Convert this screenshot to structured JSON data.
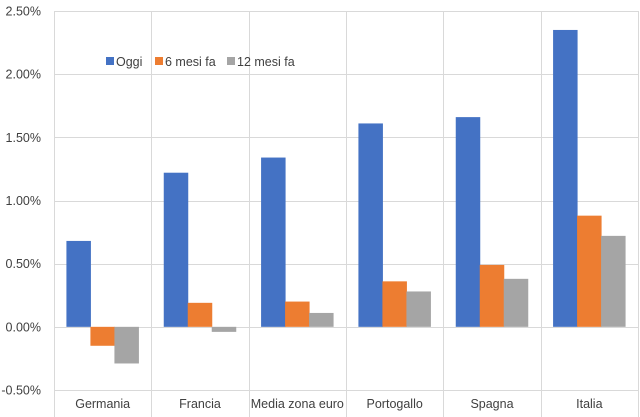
{
  "chart_data": {
    "type": "bar",
    "categories": [
      "Germania",
      "Francia",
      "Media zona euro",
      "Portogallo",
      "Spagna",
      "Italia"
    ],
    "series": [
      {
        "name": "Oggi",
        "color": "#4472C4",
        "values": [
          0.68,
          1.22,
          1.34,
          1.61,
          1.66,
          2.35
        ]
      },
      {
        "name": "6 mesi fa",
        "color": "#ED7D31",
        "values": [
          -0.15,
          0.19,
          0.2,
          0.36,
          0.49,
          0.88
        ]
      },
      {
        "name": "12 mesi fa",
        "color": "#A5A5A5",
        "values": [
          -0.29,
          -0.04,
          0.11,
          0.28,
          0.38,
          0.72
        ]
      }
    ],
    "ylim": [
      -0.5,
      2.5
    ],
    "yticks": [
      -0.5,
      0.0,
      0.5,
      1.0,
      1.5,
      2.0,
      2.5
    ],
    "ytick_labels": [
      "-0.50%",
      "0.00%",
      "0.50%",
      "1.00%",
      "1.50%",
      "2.00%",
      "2.50%"
    ],
    "grid": "horizontal",
    "category_separators": true,
    "legend_position": "top-left"
  }
}
